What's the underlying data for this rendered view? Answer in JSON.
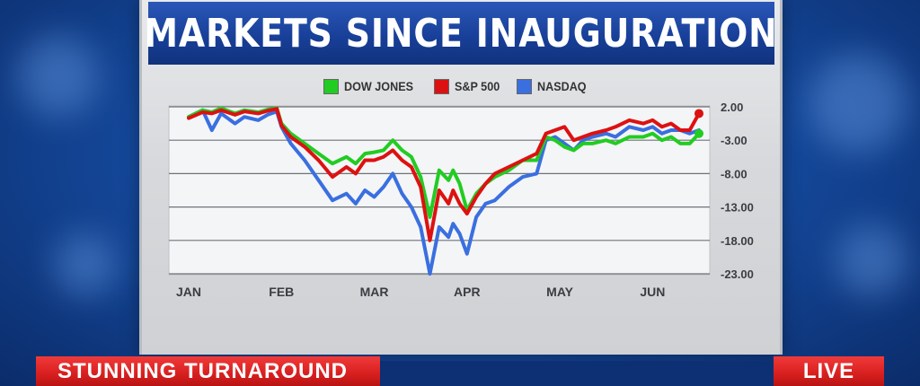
{
  "title": "MARKETS SINCE INAUGURATION",
  "banner": {
    "headline": "STUNNING TURNAROUND",
    "live_label": "LIVE"
  },
  "colors": {
    "dow": "#22cc22",
    "sp": "#dd1111",
    "nasdaq": "#3a6fe0",
    "banner": "#d81f1f",
    "title_bg": "#173e96"
  },
  "chart_data": {
    "type": "line",
    "legend_position": "top",
    "grid": true,
    "y_axis_side": "right",
    "ylim": [
      -23,
      2
    ],
    "yticks": [
      2,
      -3,
      -8,
      -13,
      -18,
      -23
    ],
    "ytick_labels": [
      "2.00",
      "-3.00",
      "-8.00",
      "-13.00",
      "-18.00",
      "-23.00"
    ],
    "xlim": [
      0,
      5.5
    ],
    "xticks": [
      0,
      1,
      2,
      3,
      4,
      5
    ],
    "xtick_labels": [
      "JAN",
      "FEB",
      "MAR",
      "APR",
      "MAY",
      "JUN"
    ],
    "series": [
      {
        "name": "DOW JONES",
        "x": [
          0,
          0.15,
          0.25,
          0.35,
          0.5,
          0.6,
          0.75,
          0.85,
          0.95,
          1.0,
          1.1,
          1.25,
          1.4,
          1.55,
          1.7,
          1.8,
          1.9,
          2.0,
          2.1,
          2.2,
          2.3,
          2.4,
          2.5,
          2.6,
          2.7,
          2.8,
          2.85,
          2.92,
          3.0,
          3.1,
          3.2,
          3.3,
          3.45,
          3.6,
          3.75,
          3.85,
          3.95,
          4.05,
          4.15,
          4.25,
          4.35,
          4.5,
          4.6,
          4.75,
          4.9,
          5.0,
          5.1,
          5.2,
          5.3,
          5.4,
          5.5
        ],
        "values": [
          0.5,
          1.5,
          1.2,
          1.8,
          1.0,
          1.5,
          1.2,
          1.6,
          1.8,
          -0.5,
          -2.0,
          -3.5,
          -5.0,
          -6.5,
          -5.5,
          -6.5,
          -5.0,
          -4.8,
          -4.5,
          -3.0,
          -4.5,
          -5.5,
          -8.5,
          -14.5,
          -7.5,
          -9.0,
          -7.5,
          -9.5,
          -13.5,
          -11.0,
          -9.5,
          -8.5,
          -7.5,
          -6.0,
          -6.0,
          -2.5,
          -3.0,
          -4.0,
          -4.5,
          -3.5,
          -3.5,
          -3.0,
          -3.5,
          -2.5,
          -2.5,
          -2.0,
          -3.0,
          -2.5,
          -3.5,
          -3.5,
          -2.0
        ]
      },
      {
        "name": "S&P 500",
        "x": [
          0,
          0.15,
          0.25,
          0.35,
          0.5,
          0.6,
          0.75,
          0.85,
          0.95,
          1.0,
          1.1,
          1.25,
          1.4,
          1.55,
          1.7,
          1.8,
          1.9,
          2.0,
          2.1,
          2.2,
          2.3,
          2.4,
          2.5,
          2.6,
          2.7,
          2.8,
          2.85,
          2.92,
          3.0,
          3.1,
          3.2,
          3.3,
          3.45,
          3.6,
          3.75,
          3.85,
          3.95,
          4.05,
          4.15,
          4.25,
          4.35,
          4.5,
          4.6,
          4.75,
          4.9,
          5.0,
          5.1,
          5.2,
          5.3,
          5.4,
          5.5
        ],
        "values": [
          0.3,
          1.2,
          1.0,
          1.5,
          0.8,
          1.3,
          1.0,
          1.4,
          1.7,
          -0.8,
          -2.5,
          -4.0,
          -6.0,
          -8.5,
          -7.0,
          -8.0,
          -6.0,
          -6.0,
          -5.5,
          -4.5,
          -6.0,
          -7.0,
          -10.0,
          -18.0,
          -10.5,
          -12.5,
          -10.5,
          -12.5,
          -14.0,
          -11.5,
          -9.5,
          -8.0,
          -7.0,
          -6.0,
          -5.0,
          -2.0,
          -1.5,
          -1.0,
          -3.0,
          -2.5,
          -2.0,
          -1.5,
          -1.0,
          0.0,
          -0.5,
          0.0,
          -1.0,
          -0.5,
          -1.5,
          -1.5,
          1.0
        ]
      },
      {
        "name": "NASDAQ",
        "x": [
          0,
          0.15,
          0.25,
          0.35,
          0.5,
          0.6,
          0.75,
          0.85,
          0.95,
          1.0,
          1.1,
          1.25,
          1.4,
          1.55,
          1.7,
          1.8,
          1.9,
          2.0,
          2.1,
          2.2,
          2.3,
          2.4,
          2.5,
          2.6,
          2.7,
          2.8,
          2.85,
          2.92,
          3.0,
          3.1,
          3.2,
          3.3,
          3.45,
          3.6,
          3.75,
          3.85,
          3.95,
          4.05,
          4.15,
          4.25,
          4.35,
          4.5,
          4.6,
          4.75,
          4.9,
          5.0,
          5.1,
          5.2,
          5.3,
          5.4,
          5.5
        ],
        "values": [
          0.5,
          1.5,
          -1.5,
          1.0,
          -0.5,
          0.5,
          0.0,
          0.8,
          1.3,
          -1.0,
          -3.5,
          -6.0,
          -9.0,
          -12.0,
          -11.0,
          -12.5,
          -10.5,
          -11.5,
          -10.0,
          -8.0,
          -11.0,
          -13.0,
          -16.0,
          -23.0,
          -16.0,
          -17.5,
          -15.5,
          -17.0,
          -20.0,
          -14.5,
          -12.5,
          -12.0,
          -10.0,
          -8.5,
          -8.0,
          -3.0,
          -2.5,
          -3.5,
          -4.5,
          -3.0,
          -2.5,
          -2.0,
          -2.5,
          -1.0,
          -1.5,
          -1.0,
          -2.0,
          -1.5,
          -1.5,
          -2.0,
          -1.5
        ]
      }
    ]
  }
}
